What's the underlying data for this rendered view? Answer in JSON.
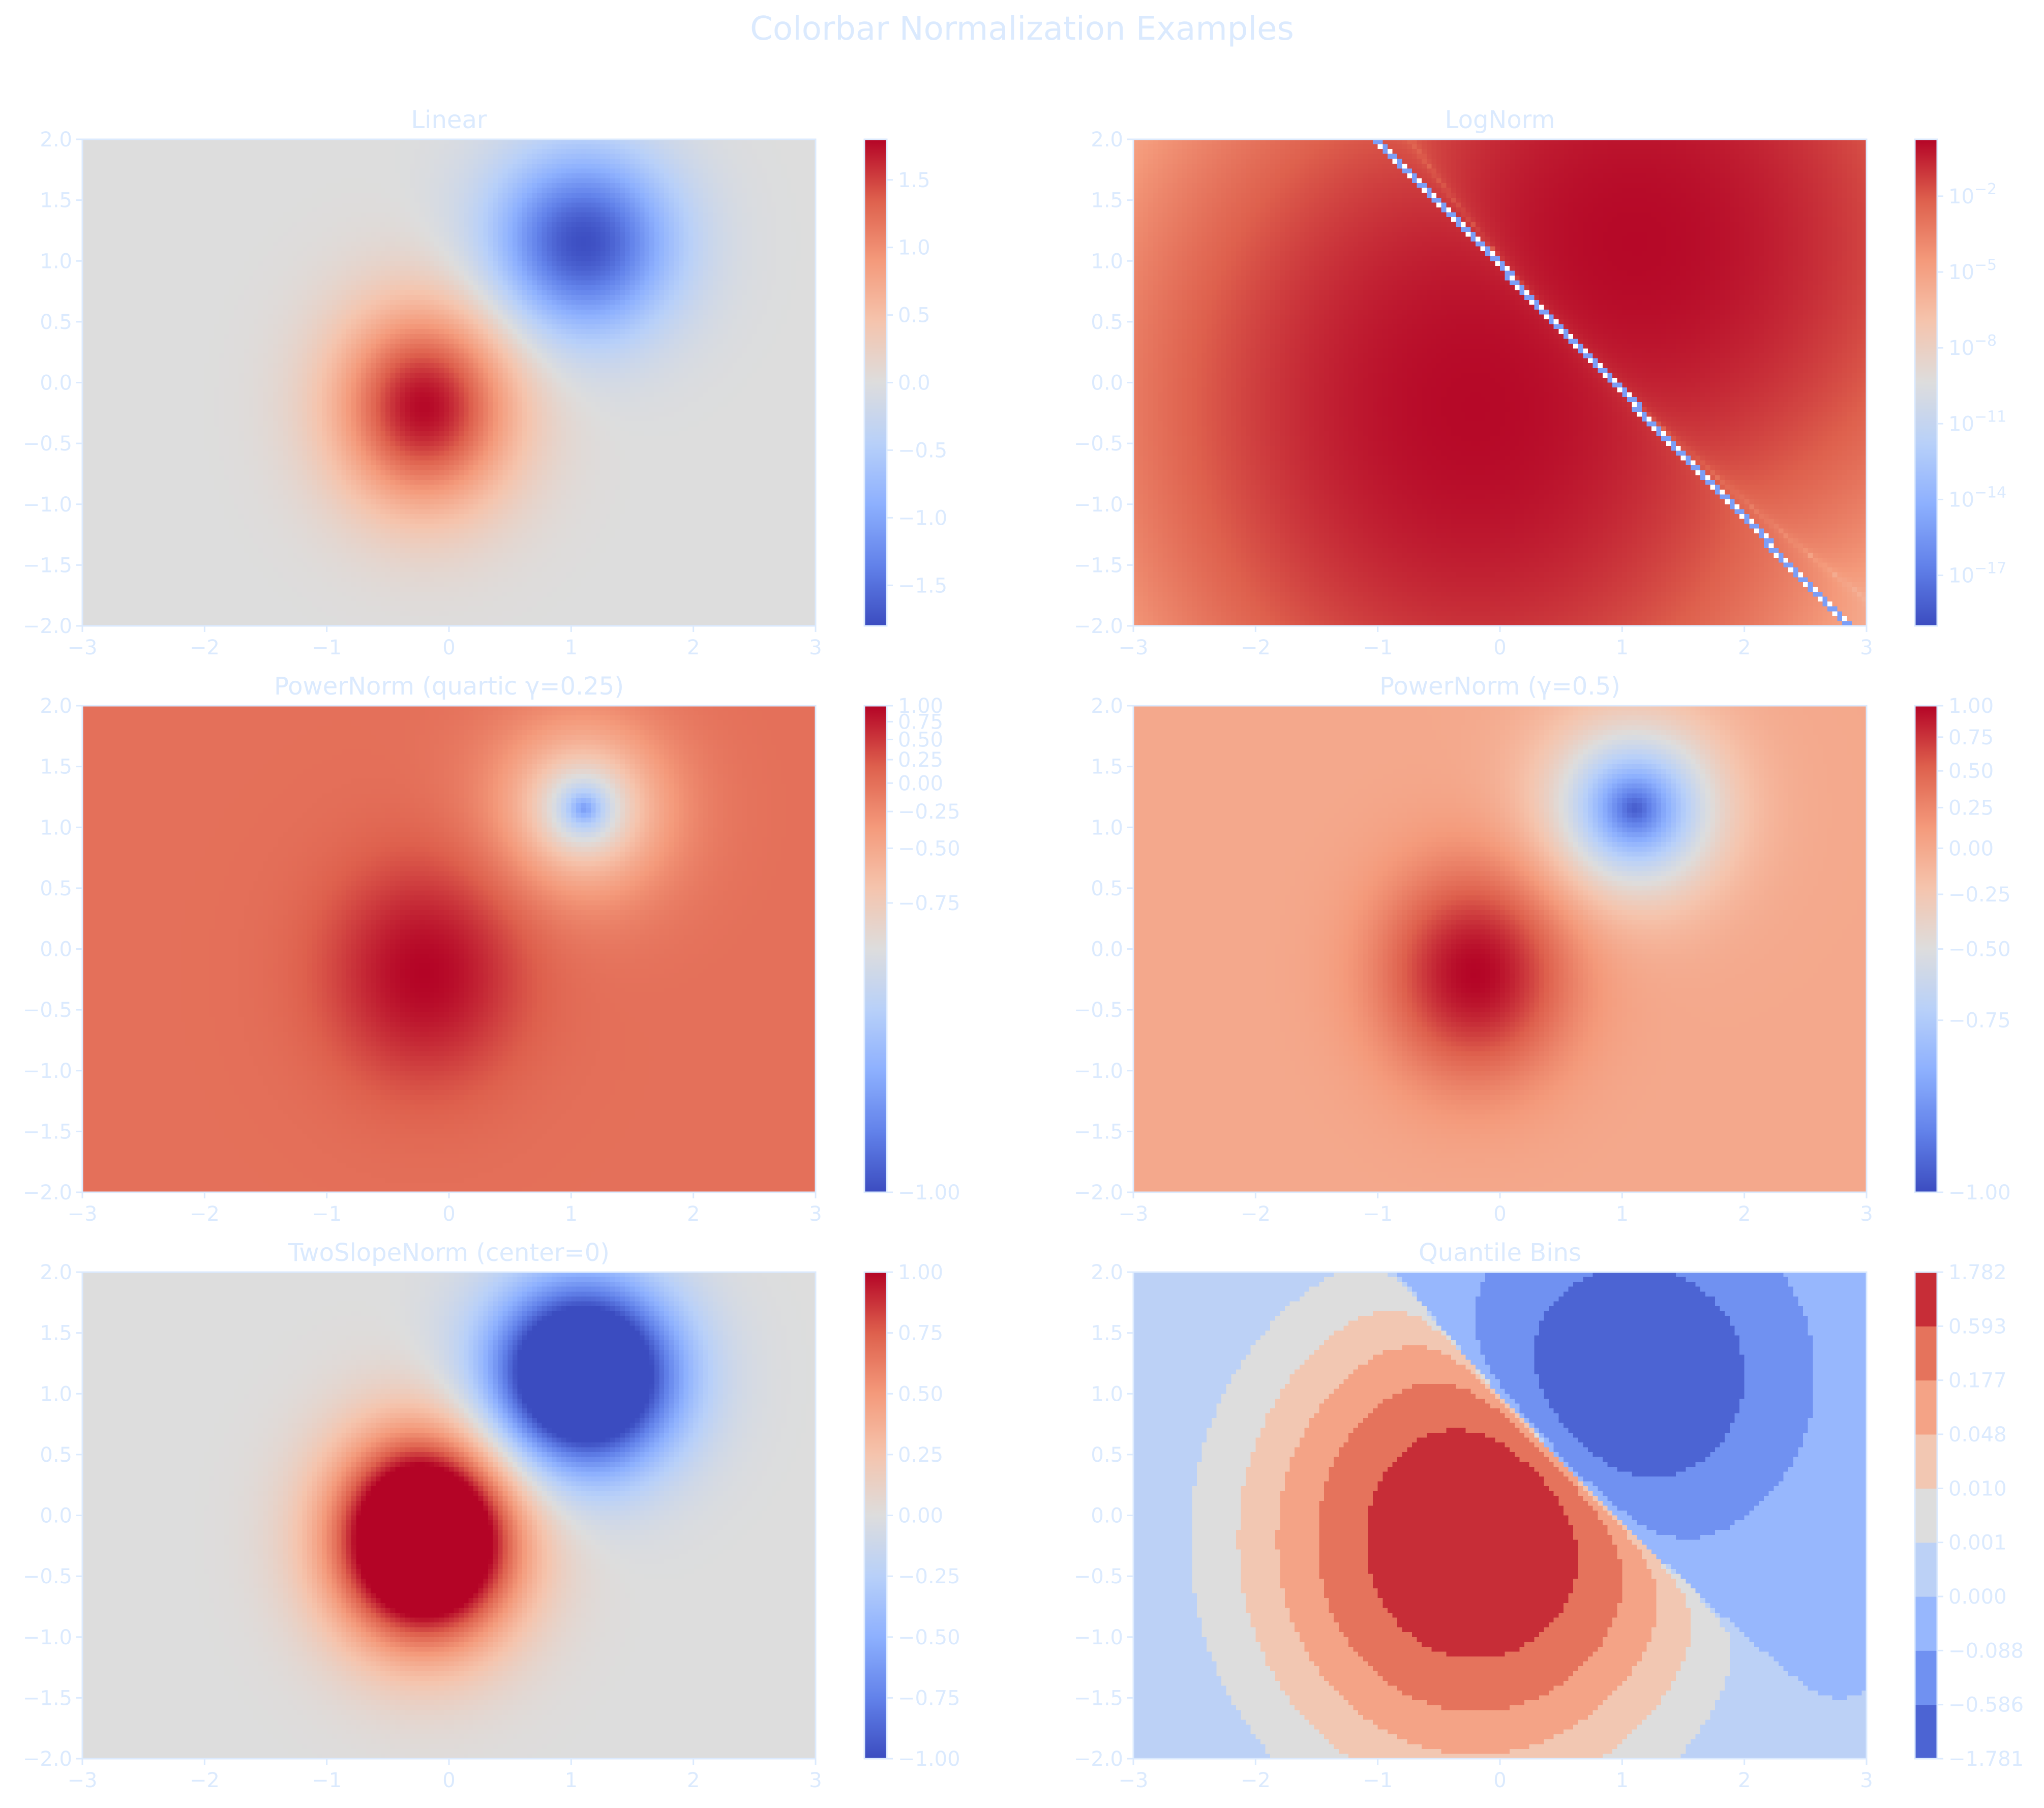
{
  "figure_title": "Colorbar Normalization Examples",
  "colors": {
    "text": "#dbeafe",
    "cmap": "coolwarm",
    "cool_end": "#3b4cc0",
    "neutral": "#dddddd",
    "warm_end": "#b40426"
  },
  "chart_data": [
    {
      "type": "heatmap",
      "title": "Linear",
      "norm": "linear",
      "field": "x*exp(-((x+0.2)^2+(y+0.2)^2)) - y*... dipole: positive lobe near (-0.2,-0.1), negative lobe near (1.1,1.1)",
      "xlim": [
        -3,
        3
      ],
      "ylim": [
        -2,
        2
      ],
      "xticks": [
        "−3",
        "−2",
        "−1",
        "0",
        "1",
        "2",
        "3"
      ],
      "yticks": [
        "−2.0",
        "−1.5",
        "−1.0",
        "−0.5",
        "0.0",
        "0.5",
        "1.0",
        "1.5",
        "2.0"
      ],
      "vmin": -1.8,
      "vmax": 1.8,
      "colorbar_ticks": [
        {
          "label": "−1.5",
          "value": -1.5
        },
        {
          "label": "−1.0",
          "value": -1.0
        },
        {
          "label": "−0.5",
          "value": -0.5
        },
        {
          "label": "0.0",
          "value": 0.0
        },
        {
          "label": "0.5",
          "value": 0.5
        },
        {
          "label": "1.0",
          "value": 1.0
        },
        {
          "label": "1.5",
          "value": 1.5
        }
      ]
    },
    {
      "type": "heatmap",
      "title": "LogNorm",
      "norm": "log",
      "xlim": [
        -3,
        3
      ],
      "ylim": [
        -2,
        2
      ],
      "xticks": [
        "−3",
        "−2",
        "−1",
        "0",
        "1",
        "2",
        "3"
      ],
      "yticks": [
        "−2.0",
        "−1.5",
        "−1.0",
        "−0.5",
        "0.0",
        "0.5",
        "1.0",
        "1.5",
        "2.0"
      ],
      "vmin_exp": -19,
      "vmax_exp": 0.25,
      "colorbar_ticks": [
        {
          "base": "10",
          "exp": "−17",
          "value": -17
        },
        {
          "base": "10",
          "exp": "−14",
          "value": -14
        },
        {
          "base": "10",
          "exp": "−11",
          "value": -11
        },
        {
          "base": "10",
          "exp": "−8",
          "value": -8
        },
        {
          "base": "10",
          "exp": "−5",
          "value": -5
        },
        {
          "base": "10",
          "exp": "−2",
          "value": -2
        }
      ]
    },
    {
      "type": "heatmap",
      "title": "PowerNorm (quartic γ=0.25)",
      "norm": "power",
      "gamma": 0.25,
      "xlim": [
        -3,
        3
      ],
      "ylim": [
        -2,
        2
      ],
      "xticks": [
        "−3",
        "−2",
        "−1",
        "0",
        "1",
        "2",
        "3"
      ],
      "yticks": [
        "−2.0",
        "−1.5",
        "−1.0",
        "−0.5",
        "0.0",
        "0.5",
        "1.0",
        "1.5",
        "2.0"
      ],
      "vmin": -1.0,
      "vmax": 1.0,
      "colorbar_ticks": [
        {
          "label": "−1.00",
          "value": -1.0
        },
        {
          "label": "−0.75",
          "value": -0.75
        },
        {
          "label": "−0.50",
          "value": -0.5
        },
        {
          "label": "−0.25",
          "value": -0.25
        },
        {
          "label": "0.00",
          "value": 0.0
        },
        {
          "label": "0.25",
          "value": 0.25
        },
        {
          "label": "0.50",
          "value": 0.5
        },
        {
          "label": "0.75",
          "value": 0.75
        },
        {
          "label": "1.00",
          "value": 1.0
        }
      ]
    },
    {
      "type": "heatmap",
      "title": "PowerNorm (γ=0.5)",
      "norm": "power",
      "gamma": 0.5,
      "xlim": [
        -3,
        3
      ],
      "ylim": [
        -2,
        2
      ],
      "xticks": [
        "−3",
        "−2",
        "−1",
        "0",
        "1",
        "2",
        "3"
      ],
      "yticks": [
        "−2.0",
        "−1.5",
        "−1.0",
        "−0.5",
        "0.0",
        "0.5",
        "1.0",
        "1.5",
        "2.0"
      ],
      "vmin": -1.0,
      "vmax": 1.0,
      "colorbar_ticks": [
        {
          "label": "−1.00",
          "value": -1.0
        },
        {
          "label": "−0.75",
          "value": -0.75
        },
        {
          "label": "−0.50",
          "value": -0.5
        },
        {
          "label": "−0.25",
          "value": -0.25
        },
        {
          "label": "0.00",
          "value": 0.0
        },
        {
          "label": "0.25",
          "value": 0.25
        },
        {
          "label": "0.50",
          "value": 0.5
        },
        {
          "label": "0.75",
          "value": 0.75
        },
        {
          "label": "1.00",
          "value": 1.0
        }
      ]
    },
    {
      "type": "heatmap",
      "title": "TwoSlopeNorm (center=0)",
      "norm": "twoslope",
      "center": 0,
      "xlim": [
        -3,
        3
      ],
      "ylim": [
        -2,
        2
      ],
      "xticks": [
        "−3",
        "−2",
        "−1",
        "0",
        "1",
        "2",
        "3"
      ],
      "yticks": [
        "−2.0",
        "−1.5",
        "−1.0",
        "−0.5",
        "0.0",
        "0.5",
        "1.0",
        "1.5",
        "2.0"
      ],
      "vmin": -1.0,
      "vmax": 1.0,
      "colorbar_ticks": [
        {
          "label": "−1.00",
          "value": -1.0
        },
        {
          "label": "−0.75",
          "value": -0.75
        },
        {
          "label": "−0.50",
          "value": -0.5
        },
        {
          "label": "−0.25",
          "value": -0.25
        },
        {
          "label": "0.00",
          "value": 0.0
        },
        {
          "label": "0.25",
          "value": 0.25
        },
        {
          "label": "0.50",
          "value": 0.5
        },
        {
          "label": "0.75",
          "value": 0.75
        },
        {
          "label": "1.00",
          "value": 1.0
        }
      ]
    },
    {
      "type": "heatmap",
      "title": "Quantile Bins",
      "norm": "boundary",
      "xlim": [
        -3,
        3
      ],
      "ylim": [
        -2,
        2
      ],
      "xticks": [
        "−3",
        "−2",
        "−1",
        "0",
        "1",
        "2",
        "3"
      ],
      "yticks": [
        "−2.0",
        "−1.5",
        "−1.0",
        "−0.5",
        "0.0",
        "0.5",
        "1.0",
        "1.5",
        "2.0"
      ],
      "boundaries": [
        -1.781,
        -0.586,
        -0.088,
        0.0,
        0.001,
        0.01,
        0.048,
        0.177,
        0.593,
        1.782
      ],
      "colorbar_ticks": [
        {
          "label": "−1.781",
          "value": -1.781
        },
        {
          "label": "−0.586",
          "value": -0.586
        },
        {
          "label": "−0.088",
          "value": -0.088
        },
        {
          "label": "0.000",
          "value": 0.0
        },
        {
          "label": "0.001",
          "value": 0.001
        },
        {
          "label": "0.010",
          "value": 0.01
        },
        {
          "label": "0.048",
          "value": 0.048
        },
        {
          "label": "0.177",
          "value": 0.177
        },
        {
          "label": "0.593",
          "value": 0.593
        },
        {
          "label": "1.782",
          "value": 1.782
        }
      ]
    }
  ]
}
